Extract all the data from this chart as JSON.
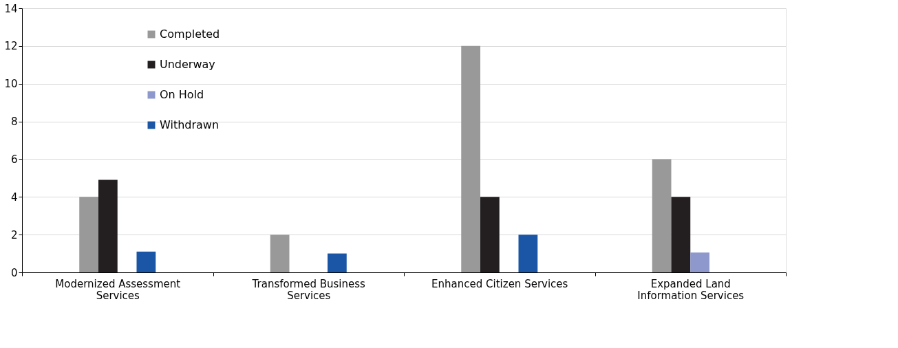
{
  "chart_data": {
    "type": "bar",
    "categories": [
      "Modernized Assessment\nServices",
      "Transformed Business\nServices",
      "Enhanced Citizen Services",
      "Expanded Land\nInformation Services"
    ],
    "series": [
      {
        "name": "Completed",
        "color": "#999999",
        "values": [
          4,
          2,
          12,
          6
        ]
      },
      {
        "name": "Underway",
        "color": "#231f20",
        "values": [
          4.9,
          null,
          4,
          4
        ]
      },
      {
        "name": "On Hold",
        "color": "#8e98cc",
        "values": [
          null,
          null,
          null,
          1.05
        ]
      },
      {
        "name": "Withdrawn",
        "color": "#1a56a5",
        "values": [
          1.1,
          1,
          2,
          null
        ]
      }
    ],
    "ylim": [
      0,
      14
    ],
    "yticks": [
      0,
      2,
      4,
      6,
      8,
      10,
      12,
      14
    ],
    "grid": "y",
    "legend": "top left"
  }
}
